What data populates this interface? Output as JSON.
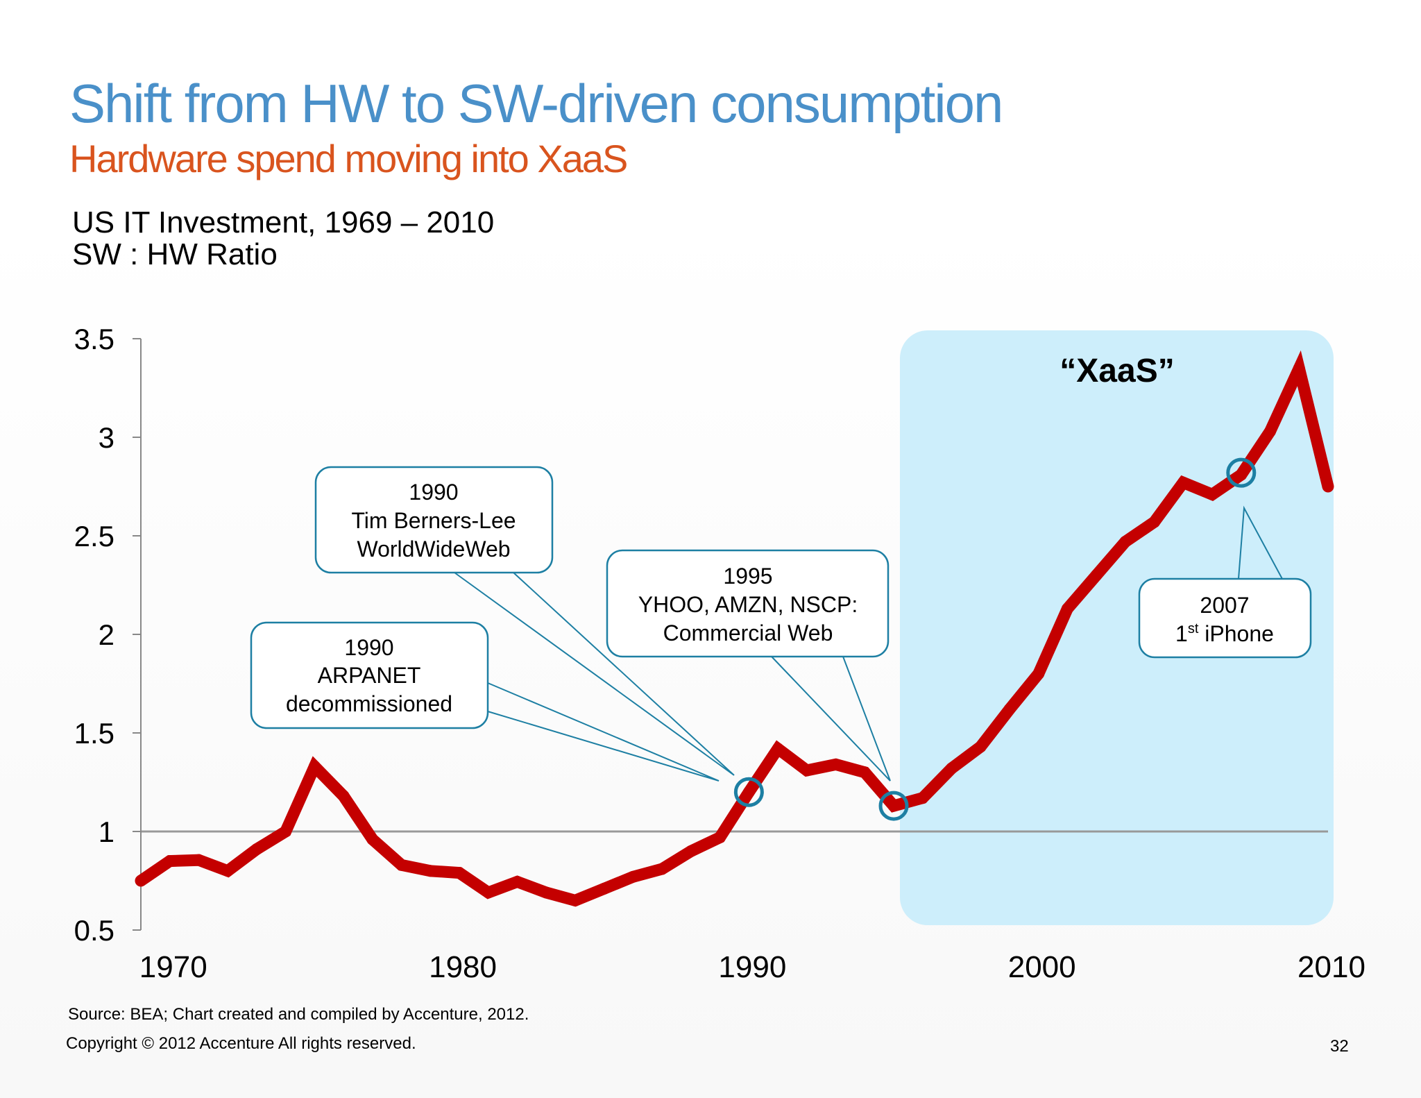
{
  "slide": {
    "title": "Shift from HW to SW-driven consumption",
    "subtitle": "Hardware spend moving into XaaS",
    "heading_line1": "US IT Investment, 1969 – 2010",
    "heading_line2": "SW : HW Ratio",
    "source": "Source: BEA; Chart created and compiled by Accenture, 2012.",
    "copyright": "Copyright © 2012 Accenture  All rights reserved.",
    "page_number": "32"
  },
  "colors": {
    "title": "#4a90c9",
    "subtitle": "#d9541e",
    "line": "#c40000",
    "xaas_region": "#cdeefb",
    "callout_border": "#1d7fa3",
    "reference_line": "#999999"
  },
  "chart_data": {
    "type": "line",
    "xlim": [
      1969,
      2010
    ],
    "ylim": [
      0.5,
      3.5
    ],
    "yticks": [
      0.5,
      1,
      1.5,
      2,
      2.5,
      3,
      3.5
    ],
    "ytick_labels": [
      "0.5",
      "1",
      "1.5",
      "2",
      "2.5",
      "3",
      "3.5"
    ],
    "xticks": [
      1970,
      1980,
      1990,
      2000,
      2010
    ],
    "xtick_labels": [
      "1970",
      "1980",
      "1990",
      "2000",
      "2010"
    ],
    "reference_y": 1,
    "grid": false,
    "series": [
      {
        "x": [
          1969,
          1970,
          1971,
          1972,
          1973,
          1974,
          1975,
          1976,
          1977,
          1978,
          1979,
          1980,
          1981,
          1982,
          1983,
          1984,
          1985,
          1986,
          1987,
          1988,
          1989,
          1990,
          1991,
          1992,
          1993,
          1994,
          1995,
          1996,
          1997,
          1998,
          1999,
          2000,
          2001,
          2002,
          2003,
          2004,
          2005,
          2006,
          2007,
          2008,
          2009,
          2010
        ],
        "values": [
          0.75,
          0.85,
          0.855,
          0.8,
          0.91,
          1.0,
          1.33,
          1.18,
          0.96,
          0.83,
          0.8,
          0.79,
          0.69,
          0.745,
          0.69,
          0.65,
          0.71,
          0.77,
          0.81,
          0.9,
          0.97,
          1.2,
          1.42,
          1.31,
          1.34,
          1.3,
          1.13,
          1.17,
          1.32,
          1.43,
          1.62,
          1.8,
          2.13,
          2.3,
          2.47,
          2.57,
          2.77,
          2.71,
          2.81,
          3.03,
          3.35,
          2.75
        ]
      }
    ],
    "shaded_region": {
      "from": 1995,
      "to": 2010,
      "label": "“XaaS”"
    },
    "annotations": [
      {
        "id": "arpanet",
        "year": "1990",
        "lines": [
          "1990",
          "ARPANET",
          "decommissioned"
        ]
      },
      {
        "id": "www",
        "year": "1990",
        "lines": [
          "1990",
          "Tim Berners-Lee",
          "WorldWideWeb"
        ]
      },
      {
        "id": "commercial",
        "year": "1995",
        "lines": [
          "1995",
          "YHOO, AMZN, NSCP:",
          "Commercial Web"
        ]
      },
      {
        "id": "iphone",
        "year": "2007",
        "line1": "2007",
        "line2_pre": "1",
        "line2_sup": "st",
        "line2_post": " iPhone"
      }
    ],
    "markers": [
      {
        "x": 1990,
        "y": 1.2
      },
      {
        "x": 1995,
        "y": 1.13
      },
      {
        "x": 2007,
        "y": 2.82
      }
    ]
  }
}
